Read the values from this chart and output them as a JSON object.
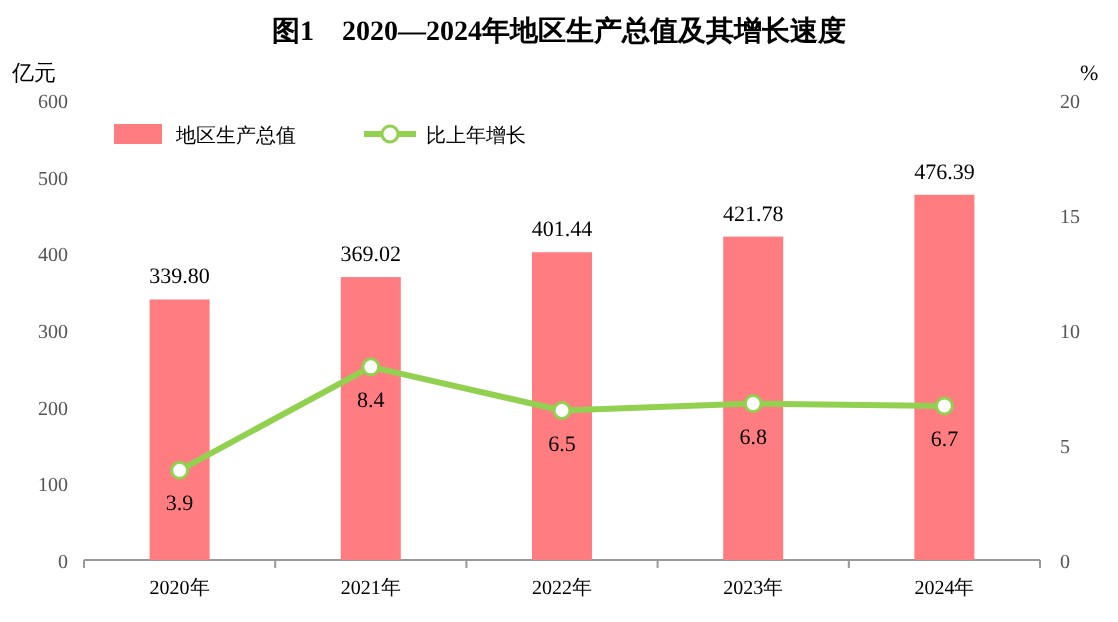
{
  "chart_data": {
    "type": "bar",
    "title": "图1　2020—2024年地区生产总值及其增长速度",
    "ylabel": "亿元",
    "y2label": "%",
    "categories": [
      "2020年",
      "2021年",
      "2022年",
      "2023年",
      "2024年"
    ],
    "series": [
      {
        "name": "地区生产总值",
        "color": "#ff7c80",
        "values": [
          339.8,
          369.02,
          401.44,
          421.78,
          476.39
        ],
        "value_labels": [
          "339.80",
          "369.02",
          "401.44",
          "421.78",
          "476.39"
        ]
      },
      {
        "name": "比上年增长",
        "type": "line",
        "axis": "y2",
        "color": "#92d050",
        "marker": "circle",
        "values": [
          3.9,
          8.4,
          6.5,
          6.8,
          6.7
        ],
        "value_labels": [
          "3.9",
          "8.4",
          "6.5",
          "6.8",
          "6.7"
        ]
      }
    ],
    "ylim": [
      0,
      600
    ],
    "yticks": [
      0,
      100,
      200,
      300,
      400,
      500,
      600
    ],
    "y2lim": [
      0,
      20
    ],
    "y2ticks": [
      0,
      5,
      10,
      15,
      20
    ],
    "legend": "top left",
    "grid": false
  }
}
